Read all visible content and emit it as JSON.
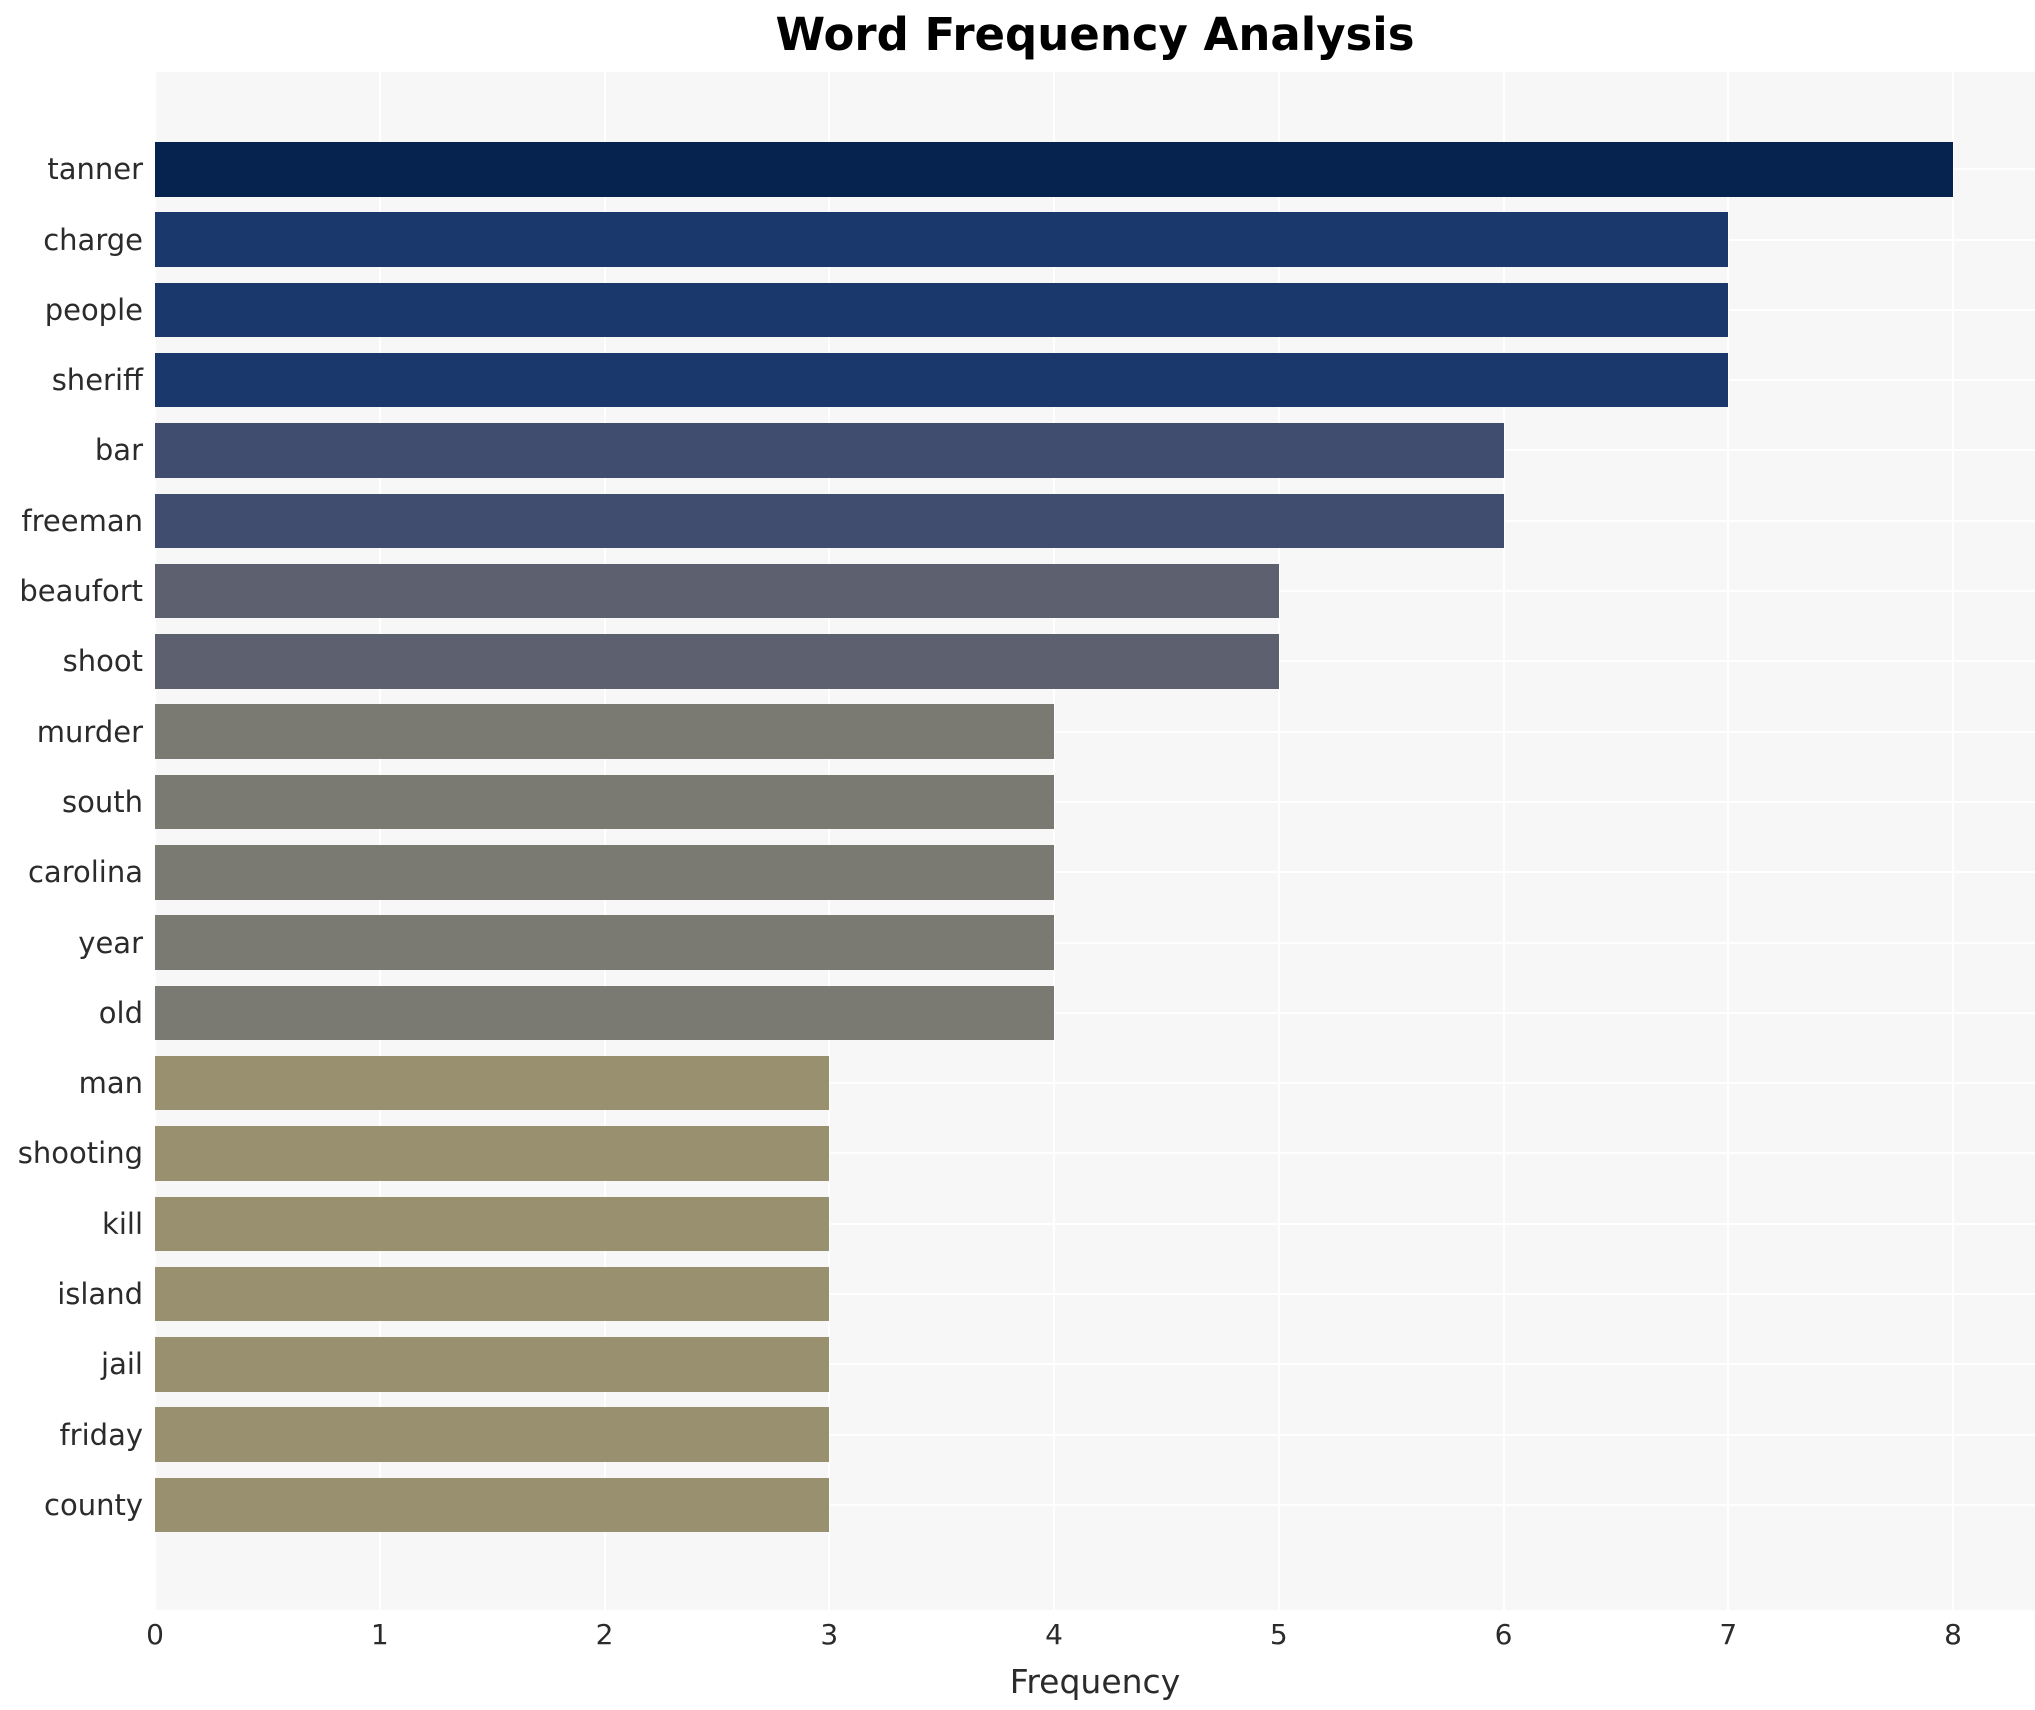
{
  "chart_data": {
    "type": "bar",
    "orientation": "horizontal",
    "title": "Word Frequency Analysis",
    "xlabel": "Frequency",
    "ylabel": "",
    "xlim": [
      0,
      8
    ],
    "xticks": [
      "0",
      "1",
      "2",
      "3",
      "4",
      "5",
      "6",
      "7",
      "8"
    ],
    "grid": true,
    "legend_position": "none",
    "plot_background_color": "#f7f7f7",
    "gridline_color": "#ffffff",
    "text_color": "#2b2b2b",
    "categories": [
      "tanner",
      "charge",
      "people",
      "sheriff",
      "bar",
      "freeman",
      "beaufort",
      "shoot",
      "murder",
      "south",
      "carolina",
      "year",
      "old",
      "man",
      "shooting",
      "kill",
      "island",
      "jail",
      "friday",
      "county"
    ],
    "values": [
      8,
      7,
      7,
      7,
      6,
      6,
      5,
      5,
      4,
      4,
      4,
      4,
      4,
      3,
      3,
      3,
      3,
      3,
      3,
      3
    ],
    "bar_colors": [
      "#062350",
      "#1b386c",
      "#1b386c",
      "#1b386c",
      "#414d6f",
      "#414d6f",
      "#5d616f",
      "#5d616f",
      "#7b7a72",
      "#7b7a72",
      "#7b7a72",
      "#7b7a72",
      "#7b7a72",
      "#999070",
      "#999070",
      "#999070",
      "#999070",
      "#999070",
      "#999070",
      "#999070"
    ]
  }
}
